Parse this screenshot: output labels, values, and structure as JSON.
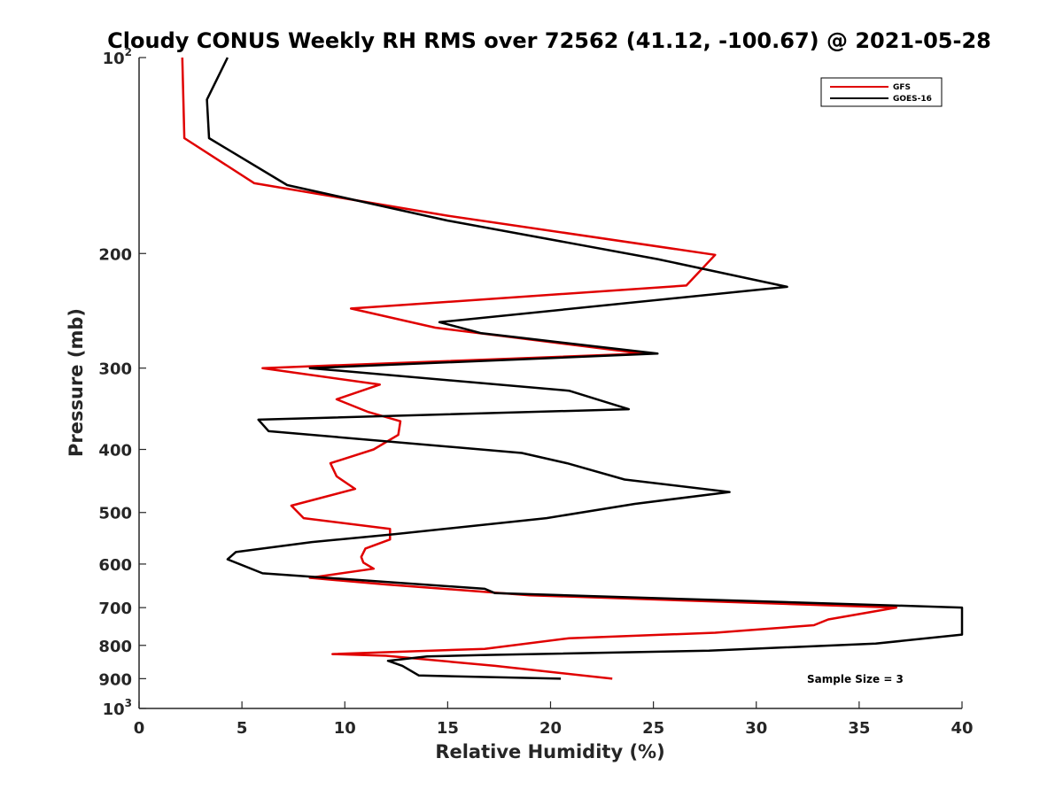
{
  "chart_data": {
    "type": "line",
    "title": "Cloudy CONUS Weekly RH RMS over 72562 (41.12, -100.67) @ 2021-05-28",
    "xlabel": "Relative Humidity (%)",
    "ylabel": "Pressure (mb)",
    "xlim": [
      0,
      40
    ],
    "ylim": [
      100,
      1000
    ],
    "y_scale": "log",
    "y_reversed": true,
    "grid": false,
    "legend_position": "top-right",
    "x_ticks": [
      0,
      5,
      10,
      15,
      20,
      25,
      30,
      35,
      40
    ],
    "y_ticks": [
      {
        "value": 100,
        "label": "10",
        "exp": "2"
      },
      {
        "value": 200,
        "label": "200"
      },
      {
        "value": 300,
        "label": "300"
      },
      {
        "value": 400,
        "label": "400"
      },
      {
        "value": 500,
        "label": "500"
      },
      {
        "value": 600,
        "label": "600"
      },
      {
        "value": 700,
        "label": "700"
      },
      {
        "value": 800,
        "label": "800"
      },
      {
        "value": 900,
        "label": "900"
      },
      {
        "value": 1000,
        "label": "10",
        "exp": "3"
      }
    ],
    "series": [
      {
        "name": "GFS",
        "color": "#e00000",
        "points": [
          [
            23.0,
            900
          ],
          [
            17.3,
            860
          ],
          [
            12.0,
            830
          ],
          [
            9.4,
            825
          ],
          [
            16.8,
            810
          ],
          [
            20.9,
            780
          ],
          [
            28.0,
            765
          ],
          [
            32.8,
            745
          ],
          [
            33.5,
            730
          ],
          [
            36.8,
            700
          ],
          [
            19.0,
            670
          ],
          [
            12.0,
            645
          ],
          [
            8.3,
            630
          ],
          [
            11.4,
            610
          ],
          [
            10.9,
            597
          ],
          [
            10.8,
            585
          ],
          [
            11.0,
            568
          ],
          [
            12.2,
            550
          ],
          [
            12.2,
            530
          ],
          [
            8.0,
            510
          ],
          [
            7.4,
            488
          ],
          [
            10.5,
            460
          ],
          [
            9.6,
            440
          ],
          [
            9.3,
            420
          ],
          [
            11.4,
            400
          ],
          [
            12.6,
            380
          ],
          [
            12.7,
            362
          ],
          [
            11.1,
            350
          ],
          [
            9.6,
            335
          ],
          [
            11.7,
            318
          ],
          [
            6.0,
            300
          ],
          [
            24.5,
            285
          ],
          [
            14.4,
            260
          ],
          [
            10.3,
            243
          ],
          [
            26.6,
            224
          ],
          [
            28.0,
            201
          ],
          [
            15.0,
            175
          ],
          [
            5.6,
            156
          ],
          [
            2.2,
            133
          ],
          [
            2.1,
            100
          ]
        ]
      },
      {
        "name": "GOES-16",
        "color": "#000000",
        "points": [
          [
            20.5,
            900
          ],
          [
            13.6,
            890
          ],
          [
            12.8,
            860
          ],
          [
            12.1,
            845
          ],
          [
            14.0,
            832
          ],
          [
            16.6,
            828
          ],
          [
            27.7,
            815
          ],
          [
            35.8,
            795
          ],
          [
            40.0,
            770
          ],
          [
            40.0,
            700
          ],
          [
            17.3,
            665
          ],
          [
            16.8,
            655
          ],
          [
            6.0,
            620
          ],
          [
            4.3,
            590
          ],
          [
            4.7,
            575
          ],
          [
            8.4,
            555
          ],
          [
            12.4,
            540
          ],
          [
            19.8,
            510
          ],
          [
            24.1,
            485
          ],
          [
            28.7,
            465
          ],
          [
            23.6,
            445
          ],
          [
            20.8,
            420
          ],
          [
            18.6,
            405
          ],
          [
            6.3,
            375
          ],
          [
            5.8,
            360
          ],
          [
            23.8,
            347
          ],
          [
            20.9,
            325
          ],
          [
            8.3,
            300
          ],
          [
            25.2,
            285
          ],
          [
            16.6,
            265
          ],
          [
            14.6,
            255
          ],
          [
            31.5,
            225
          ],
          [
            25.2,
            204
          ],
          [
            15.0,
            178
          ],
          [
            7.2,
            157
          ],
          [
            3.4,
            133
          ],
          [
            3.3,
            116
          ],
          [
            4.3,
            100
          ]
        ]
      }
    ],
    "annotation": "Sample Size = 3"
  }
}
